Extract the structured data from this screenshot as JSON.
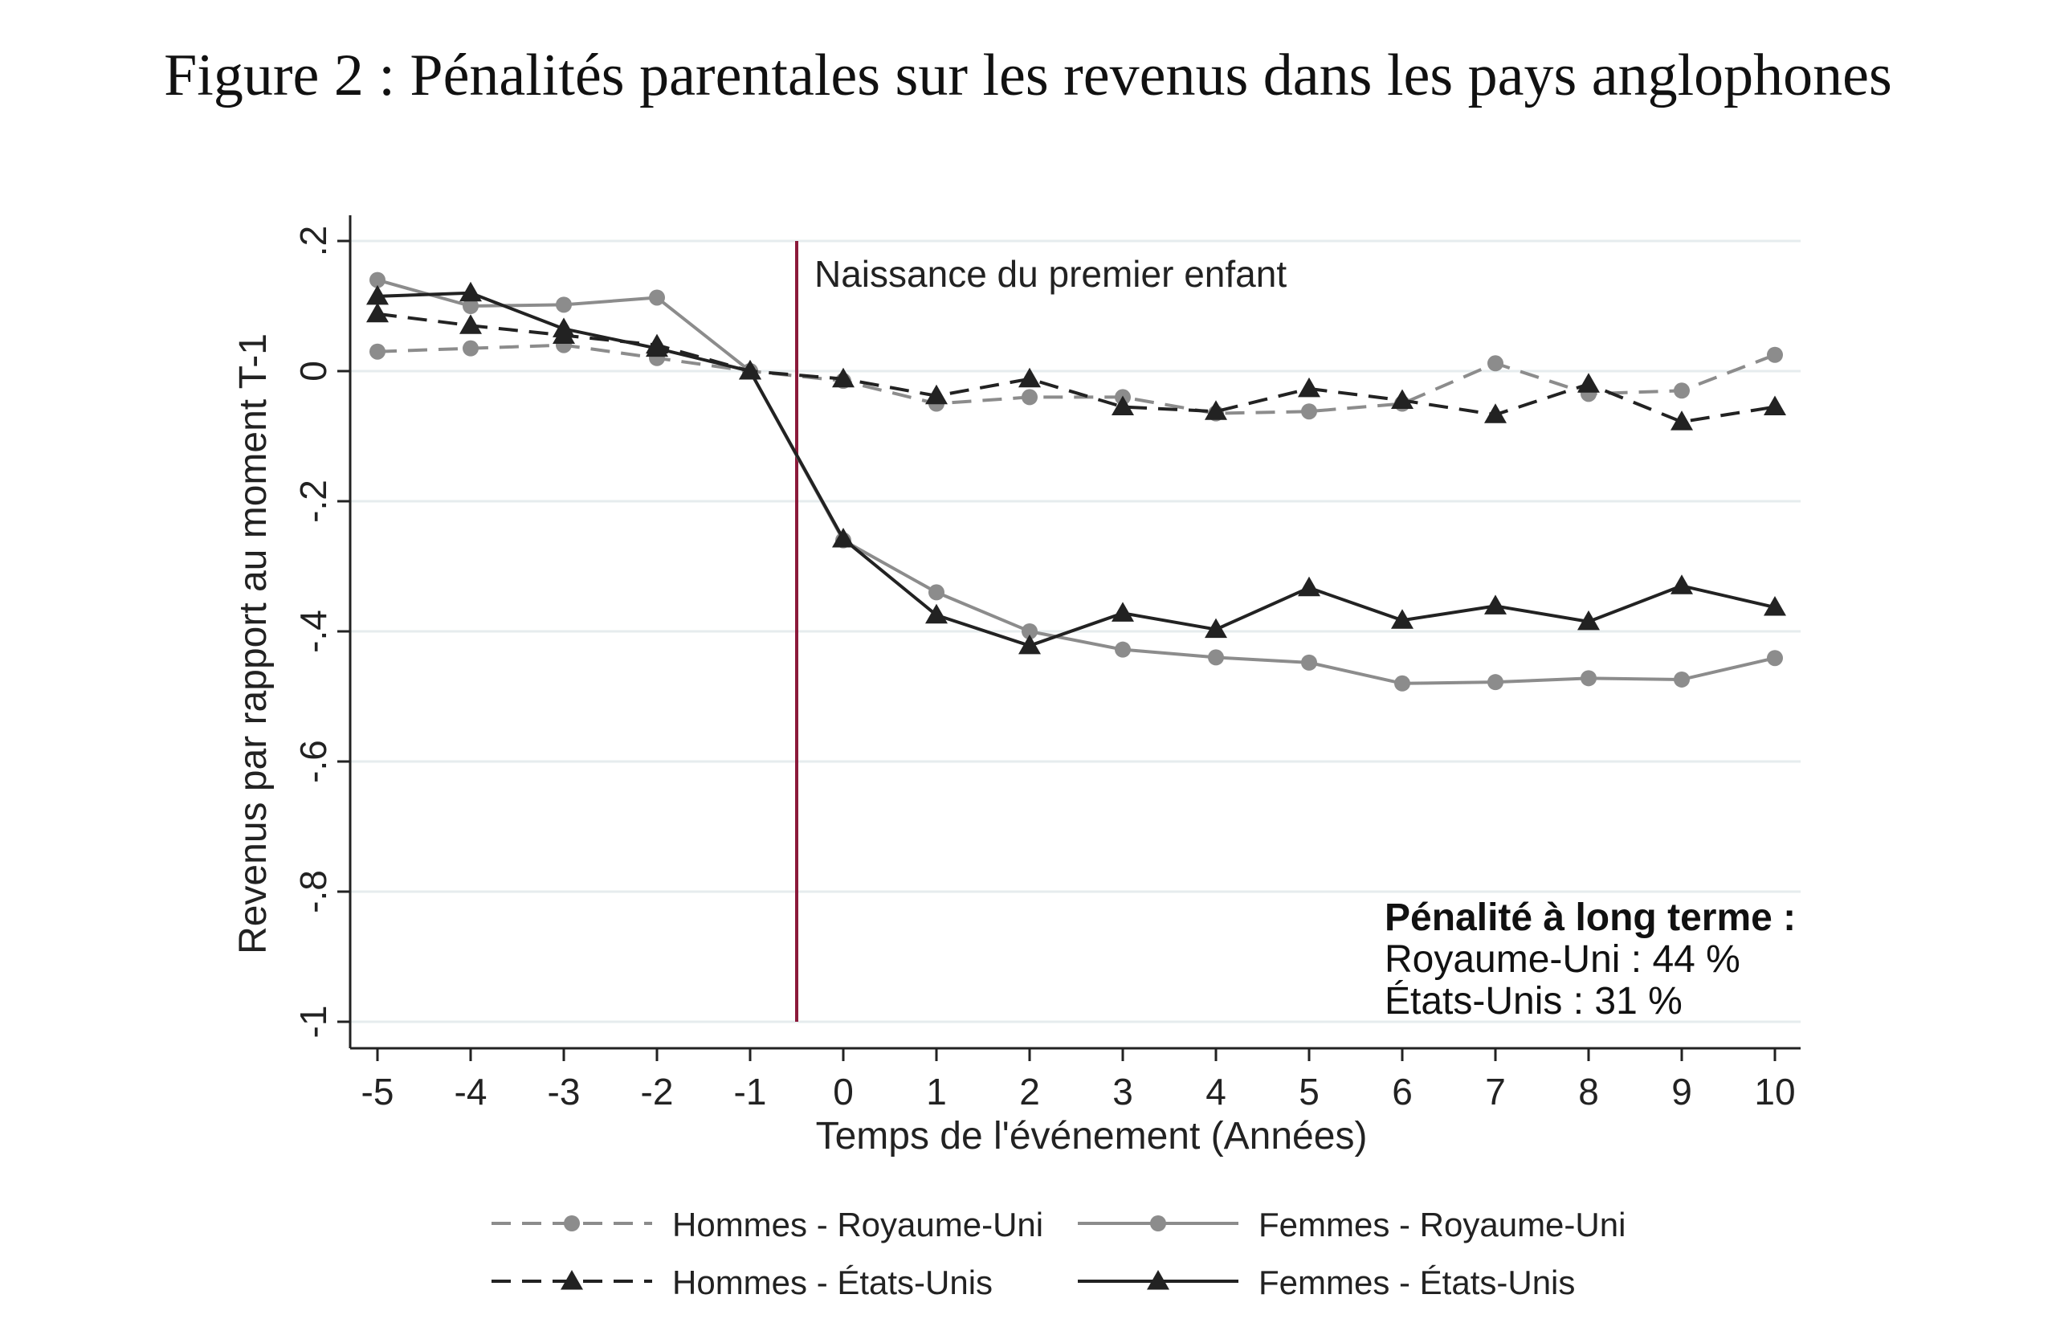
{
  "title": "Figure 2 : Pénalités parentales sur les revenus dans les pays anglophones",
  "chart_data": {
    "type": "line",
    "xlabel": "Temps de l'événement (Années)",
    "ylabel": "Revenus par rapport au moment T-1",
    "x": [
      -5,
      -4,
      -3,
      -2,
      -1,
      0,
      1,
      2,
      3,
      4,
      5,
      6,
      7,
      8,
      9,
      10
    ],
    "x_tick_labels": [
      "-5",
      "-4",
      "-3",
      "-2",
      "-1",
      "0",
      "1",
      "2",
      "3",
      "4",
      "5",
      "6",
      "7",
      "8",
      "9",
      "10"
    ],
    "y_ticks": [
      0.2,
      0,
      -0.2,
      -0.4,
      -0.6,
      -0.8,
      -1
    ],
    "y_tick_labels": [
      ".2",
      "0",
      "-.2",
      "-.4",
      "-.6",
      "-.8",
      "-1"
    ],
    "xlim": [
      -5,
      10
    ],
    "ylim": [
      -1,
      0.2
    ],
    "grid": true,
    "legend_position": "bottom",
    "series": [
      {
        "name": "Hommes - Royaume-Uni",
        "color": "#8c8c8c",
        "dash": "dashed",
        "marker": "circle",
        "values": [
          0.03,
          0.035,
          0.04,
          0.02,
          0.0,
          -0.015,
          -0.05,
          -0.04,
          -0.04,
          -0.065,
          -0.062,
          -0.05,
          0.012,
          -0.035,
          -0.03,
          0.025
        ]
      },
      {
        "name": "Femmes - Royaume-Uni",
        "color": "#8c8c8c",
        "dash": "solid",
        "marker": "circle",
        "values": [
          0.14,
          0.1,
          0.102,
          0.113,
          0.0,
          -0.26,
          -0.34,
          -0.4,
          -0.428,
          -0.44,
          -0.448,
          -0.48,
          -0.478,
          -0.472,
          -0.474,
          -0.441
        ]
      },
      {
        "name": "Hommes - États-Unis",
        "color": "#222222",
        "dash": "dashed",
        "marker": "triangle",
        "values": [
          0.088,
          0.07,
          0.055,
          0.04,
          0.0,
          -0.012,
          -0.038,
          -0.012,
          -0.055,
          -0.062,
          -0.027,
          -0.045,
          -0.067,
          -0.02,
          -0.078,
          -0.055
        ]
      },
      {
        "name": "Femmes - États-Unis",
        "color": "#222222",
        "dash": "solid",
        "marker": "triangle",
        "values": [
          0.115,
          0.12,
          0.065,
          0.035,
          0.0,
          -0.258,
          -0.375,
          -0.422,
          -0.372,
          -0.397,
          -0.333,
          -0.383,
          -0.361,
          -0.385,
          -0.33,
          -0.363
        ]
      }
    ],
    "event_line": {
      "x": -0.5,
      "label": "Naissance du premier enfant",
      "color": "#8b1a3a"
    },
    "annotation": {
      "heading": "Pénalité à long terme :",
      "lines": [
        "Royaume-Uni : 44 %",
        "États-Unis : 31 %"
      ]
    }
  }
}
